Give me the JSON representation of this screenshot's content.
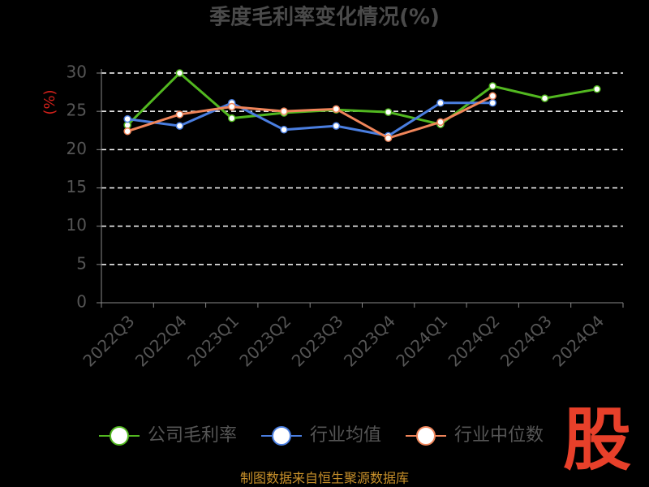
{
  "chart_data": {
    "type": "line",
    "title": "季度毛利率变化情况(%)",
    "y_label": "(%)",
    "categories": [
      "2022Q3",
      "2022Q4",
      "2023Q1",
      "2023Q2",
      "2023Q3",
      "2023Q4",
      "2024Q1",
      "2024Q2",
      "2024Q3",
      "2024Q4"
    ],
    "series": [
      {
        "name": "公司毛利率",
        "color": "#52b820",
        "values": [
          23.2,
          30,
          24.1,
          24.8,
          25.2,
          24.9,
          23.3,
          28.3,
          26.7,
          27.9
        ]
      },
      {
        "name": "行业均值",
        "color": "#4a7ee0",
        "values": [
          24.0,
          23.1,
          26.1,
          22.6,
          23.1,
          21.8,
          26.1,
          26.1,
          null,
          null
        ]
      },
      {
        "name": "行业中位数",
        "color": "#f0855a",
        "values": [
          22.4,
          24.6,
          25.6,
          25.0,
          25.3,
          21.5,
          23.6,
          27.0,
          null,
          null
        ]
      }
    ],
    "ylim": [
      0,
      30
    ],
    "yticks": [
      0,
      5,
      10,
      15,
      20,
      25,
      30
    ],
    "grid": true,
    "legend": "bottom",
    "source": "制图数据来自恒生聚源数据库",
    "logo": "股"
  }
}
